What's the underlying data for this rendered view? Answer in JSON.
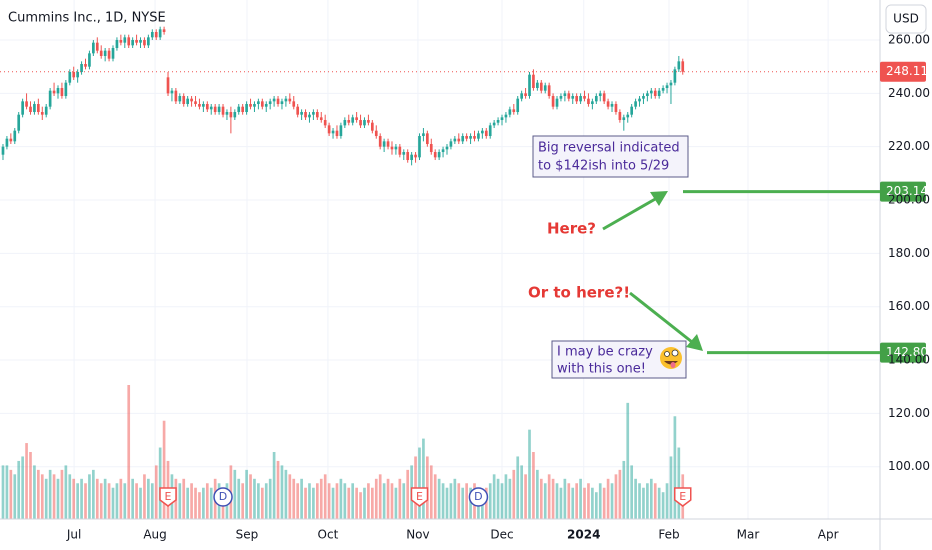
{
  "chart_data": {
    "type": "candlestick",
    "title": "Cummins Inc., 1D, NYSE",
    "currency": "USD",
    "up_color": "#26a69a",
    "down_color": "#ef5350",
    "ylim": [
      80.4,
      275
    ],
    "yticks": [
      {
        "value": 100,
        "label": "100.00"
      },
      {
        "value": 120,
        "label": "120.00"
      },
      {
        "value": 140,
        "label": "140.00"
      },
      {
        "value": 160,
        "label": "160.00"
      },
      {
        "value": 180,
        "label": "180.00"
      },
      {
        "value": 200,
        "label": "200.00"
      },
      {
        "value": 220,
        "label": "220.00"
      },
      {
        "value": 240,
        "label": "240.00"
      },
      {
        "value": 260,
        "label": "260.00"
      }
    ],
    "xlim": [
      -0.76,
      223.2
    ],
    "xticks": [
      {
        "value": 18.1,
        "label": "Jul"
      },
      {
        "value": 38.7,
        "label": "Aug"
      },
      {
        "value": 62.1,
        "label": "Sep"
      },
      {
        "value": 82.7,
        "label": "Oct"
      },
      {
        "value": 105.6,
        "label": "Nov"
      },
      {
        "value": 127,
        "label": "Dec"
      },
      {
        "value": 147.8,
        "label": "2024"
      },
      {
        "value": 169.5,
        "label": "Feb"
      },
      {
        "value": 189.6,
        "label": "Mar"
      },
      {
        "value": 210,
        "label": "Apr"
      }
    ],
    "grid": true,
    "ohlc": [
      [
        217,
        221,
        215,
        220
      ],
      [
        220,
        224,
        219,
        223
      ],
      [
        223,
        225,
        221,
        222
      ],
      [
        222,
        227,
        221,
        226
      ],
      [
        226,
        233,
        225,
        232
      ],
      [
        232,
        238,
        231,
        237
      ],
      [
        237,
        240,
        234,
        235
      ],
      [
        235,
        237,
        232,
        233
      ],
      [
        233,
        237,
        232,
        236
      ],
      [
        236,
        238,
        232,
        233
      ],
      [
        233,
        235,
        230,
        232
      ],
      [
        232,
        236,
        231,
        235
      ],
      [
        235,
        242,
        234,
        241
      ],
      [
        241,
        244,
        239,
        240
      ],
      [
        240,
        243,
        238,
        242
      ],
      [
        242,
        244,
        238,
        239
      ],
      [
        239,
        245,
        238,
        244
      ],
      [
        244,
        249,
        243,
        248
      ],
      [
        248,
        250,
        245,
        246
      ],
      [
        246,
        249,
        244,
        248
      ],
      [
        248,
        252,
        247,
        251
      ],
      [
        251,
        253,
        249,
        250
      ],
      [
        250,
        256,
        249,
        255
      ],
      [
        255,
        260,
        254,
        259
      ],
      [
        259,
        261,
        255,
        256
      ],
      [
        256,
        258,
        253,
        254
      ],
      [
        254,
        257,
        252,
        256
      ],
      [
        256,
        257,
        252,
        253
      ],
      [
        253,
        258,
        252,
        257
      ],
      [
        257,
        261,
        256,
        260
      ],
      [
        260,
        262,
        258,
        259
      ],
      [
        259,
        262,
        257,
        261
      ],
      [
        261,
        262,
        257,
        258
      ],
      [
        258,
        261,
        257,
        260
      ],
      [
        260,
        262,
        258,
        259
      ],
      [
        259,
        261,
        257,
        260
      ],
      [
        260,
        261,
        257,
        258
      ],
      [
        258,
        262,
        257,
        261
      ],
      [
        261,
        264,
        260,
        263
      ],
      [
        263,
        264,
        260,
        261
      ],
      [
        261,
        265,
        260,
        264
      ],
      [
        264,
        265,
        262,
        263
      ],
      [
        246,
        248,
        239,
        240
      ],
      [
        240,
        242,
        237,
        241
      ],
      [
        241,
        242,
        236,
        237
      ],
      [
        237,
        240,
        236,
        239
      ],
      [
        239,
        240,
        235,
        236
      ],
      [
        236,
        239,
        235,
        238
      ],
      [
        238,
        239,
        235,
        237
      ],
      [
        237,
        239,
        235,
        236
      ],
      [
        236,
        238,
        234,
        235
      ],
      [
        235,
        237,
        233,
        236
      ],
      [
        236,
        237,
        233,
        234
      ],
      [
        234,
        236,
        232,
        235
      ],
      [
        235,
        236,
        232,
        233
      ],
      [
        233,
        236,
        232,
        235
      ],
      [
        235,
        236,
        231,
        232
      ],
      [
        232,
        234,
        230,
        233
      ],
      [
        233,
        235,
        225,
        231
      ],
      [
        231,
        234,
        230,
        233
      ],
      [
        233,
        236,
        232,
        235
      ],
      [
        235,
        236,
        232,
        233
      ],
      [
        233,
        237,
        232,
        236
      ],
      [
        236,
        238,
        234,
        235
      ],
      [
        235,
        237,
        233,
        236
      ],
      [
        236,
        238,
        234,
        237
      ],
      [
        237,
        238,
        234,
        235
      ],
      [
        235,
        237,
        233,
        236
      ],
      [
        236,
        238,
        234,
        237
      ],
      [
        237,
        239,
        235,
        238
      ],
      [
        238,
        239,
        235,
        236
      ],
      [
        236,
        238,
        234,
        237
      ],
      [
        237,
        239,
        235,
        238
      ],
      [
        238,
        240,
        236,
        237
      ],
      [
        237,
        239,
        234,
        235
      ],
      [
        235,
        236,
        231,
        232
      ],
      [
        232,
        234,
        230,
        233
      ],
      [
        233,
        234,
        230,
        231
      ],
      [
        231,
        233,
        229,
        232
      ],
      [
        232,
        234,
        230,
        233
      ],
      [
        233,
        234,
        230,
        231
      ],
      [
        231,
        233,
        229,
        230
      ],
      [
        230,
        232,
        227,
        228
      ],
      [
        228,
        229,
        224,
        225
      ],
      [
        225,
        227,
        223,
        226
      ],
      [
        226,
        228,
        223,
        224
      ],
      [
        224,
        229,
        223,
        228
      ],
      [
        228,
        231,
        227,
        230
      ],
      [
        230,
        232,
        228,
        229
      ],
      [
        229,
        232,
        228,
        231
      ],
      [
        231,
        233,
        229,
        230
      ],
      [
        230,
        232,
        227,
        228
      ],
      [
        228,
        231,
        227,
        230
      ],
      [
        230,
        232,
        228,
        229
      ],
      [
        229,
        230,
        225,
        226
      ],
      [
        226,
        228,
        223,
        224
      ],
      [
        224,
        225,
        219,
        220
      ],
      [
        220,
        223,
        218,
        222
      ],
      [
        222,
        223,
        219,
        220
      ],
      [
        220,
        222,
        217,
        219
      ],
      [
        219,
        221,
        217,
        220
      ],
      [
        220,
        221,
        216,
        217
      ],
      [
        217,
        219,
        215,
        218
      ],
      [
        218,
        219,
        214,
        215
      ],
      [
        215,
        218,
        213,
        217
      ],
      [
        217,
        218,
        214,
        216
      ],
      [
        216,
        225,
        215,
        224
      ],
      [
        224,
        227,
        222,
        225
      ],
      [
        225,
        226,
        220,
        221
      ],
      [
        221,
        223,
        217,
        218
      ],
      [
        218,
        219,
        215,
        216
      ],
      [
        216,
        219,
        215,
        218
      ],
      [
        218,
        220,
        216,
        219
      ],
      [
        219,
        221,
        217,
        220
      ],
      [
        220,
        223,
        219,
        222
      ],
      [
        222,
        224,
        221,
        223
      ],
      [
        223,
        225,
        221,
        222
      ],
      [
        222,
        225,
        221,
        224
      ],
      [
        224,
        225,
        222,
        223
      ],
      [
        223,
        225,
        221,
        224
      ],
      [
        224,
        226,
        222,
        223
      ],
      [
        223,
        226,
        222,
        225
      ],
      [
        225,
        227,
        223,
        226
      ],
      [
        226,
        227,
        223,
        224
      ],
      [
        224,
        229,
        223,
        228
      ],
      [
        228,
        230,
        227,
        229
      ],
      [
        229,
        231,
        228,
        230
      ],
      [
        230,
        232,
        228,
        231
      ],
      [
        231,
        233,
        229,
        232
      ],
      [
        232,
        235,
        231,
        234
      ],
      [
        234,
        236,
        232,
        233
      ],
      [
        233,
        239,
        232,
        238
      ],
      [
        238,
        241,
        237,
        240
      ],
      [
        240,
        242,
        238,
        239
      ],
      [
        239,
        248,
        238,
        247
      ],
      [
        247,
        249,
        241,
        242
      ],
      [
        242,
        245,
        241,
        244
      ],
      [
        244,
        245,
        240,
        241
      ],
      [
        241,
        244,
        240,
        243
      ],
      [
        243,
        244,
        238,
        239
      ],
      [
        239,
        240,
        234,
        235
      ],
      [
        235,
        239,
        234,
        238
      ],
      [
        238,
        240,
        237,
        239
      ],
      [
        239,
        241,
        237,
        240
      ],
      [
        240,
        241,
        237,
        238
      ],
      [
        238,
        240,
        236,
        239
      ],
      [
        239,
        240,
        236,
        237
      ],
      [
        237,
        240,
        236,
        239
      ],
      [
        239,
        241,
        237,
        238
      ],
      [
        238,
        240,
        235,
        236
      ],
      [
        236,
        238,
        234,
        237
      ],
      [
        237,
        240,
        236,
        239
      ],
      [
        239,
        241,
        237,
        240
      ],
      [
        240,
        241,
        236,
        237
      ],
      [
        237,
        238,
        234,
        235
      ],
      [
        235,
        237,
        233,
        236
      ],
      [
        236,
        237,
        232,
        233
      ],
      [
        233,
        234,
        229,
        230
      ],
      [
        230,
        232,
        226,
        231
      ],
      [
        231,
        233,
        229,
        232
      ],
      [
        232,
        236,
        231,
        235
      ],
      [
        235,
        238,
        234,
        237
      ],
      [
        237,
        239,
        235,
        238
      ],
      [
        238,
        240,
        236,
        239
      ],
      [
        239,
        241,
        237,
        240
      ],
      [
        240,
        242,
        238,
        241
      ],
      [
        241,
        242,
        238,
        239
      ],
      [
        239,
        242,
        238,
        241
      ],
      [
        241,
        243,
        240,
        242
      ],
      [
        242,
        244,
        240,
        243
      ],
      [
        243,
        245,
        236,
        244
      ],
      [
        244,
        250,
        243,
        249
      ],
      [
        249,
        254,
        248,
        252
      ],
      [
        252,
        253,
        247,
        248.11
      ]
    ],
    "volumes": [
      1.2,
      1.2,
      1.1,
      1.0,
      1.3,
      1.4,
      1.7,
      1.5,
      1.2,
      1.1,
      1.0,
      0.9,
      1.1,
      1.0,
      0.9,
      1.1,
      1.2,
      1.0,
      0.9,
      0.8,
      0.9,
      0.8,
      1.0,
      1.1,
      0.9,
      0.8,
      0.9,
      0.8,
      0.7,
      0.8,
      0.9,
      0.8,
      3.0,
      0.9,
      0.8,
      0.7,
      1.0,
      0.9,
      0.8,
      1.2,
      1.6,
      2.2,
      1.3,
      1.0,
      0.9,
      0.8,
      0.9,
      0.7,
      0.8,
      0.7,
      0.6,
      0.7,
      0.8,
      0.7,
      0.9,
      0.8,
      0.7,
      0.8,
      1.2,
      1.1,
      0.9,
      0.8,
      1.1,
      1.0,
      0.9,
      0.8,
      0.7,
      0.8,
      0.9,
      1.5,
      1.3,
      1.2,
      1.1,
      1.0,
      0.9,
      0.8,
      0.9,
      0.7,
      0.8,
      0.7,
      0.8,
      0.9,
      1.0,
      0.8,
      0.7,
      0.8,
      0.9,
      0.8,
      0.7,
      0.8,
      0.7,
      0.6,
      0.7,
      0.8,
      0.7,
      0.9,
      1.0,
      0.8,
      0.9,
      0.8,
      0.7,
      0.9,
      0.8,
      1.1,
      1.2,
      1.4,
      1.6,
      1.8,
      1.4,
      1.2,
      1.0,
      0.9,
      0.8,
      0.7,
      0.8,
      0.9,
      0.8,
      0.7,
      0.8,
      0.7,
      0.8,
      0.7,
      0.6,
      0.7,
      0.8,
      1.0,
      0.9,
      0.8,
      1.0,
      0.9,
      1.1,
      1.4,
      1.2,
      1.0,
      2.0,
      1.5,
      1.1,
      0.9,
      0.8,
      1.0,
      0.9,
      0.8,
      0.7,
      0.9,
      0.8,
      0.7,
      0.8,
      0.9,
      0.7,
      0.8,
      0.7,
      0.6,
      0.8,
      0.7,
      0.9,
      0.8,
      1.0,
      1.1,
      1.3,
      2.6,
      1.2,
      0.9,
      0.8,
      0.7,
      0.8,
      0.9,
      0.8,
      0.7,
      0.6,
      0.8,
      1.4,
      2.3,
      1.6,
      1.0
    ],
    "last_price": 248.11,
    "levels": [
      203.14,
      {
        "value": 142.8,
        "label": "142.80"
      }
    ],
    "events": [
      {
        "label": "E",
        "index": 42
      },
      {
        "label": "D",
        "index": 56
      },
      {
        "label": "E",
        "index": 106
      },
      {
        "label": "D",
        "index": 121
      },
      {
        "label": "E",
        "index": 173
      }
    ],
    "annotations": [
      {
        "lines": [
          "Big reversal indicated",
          "to $142ish into 5/29"
        ]
      },
      {
        "text": "Here?"
      },
      {
        "text": "Or to here?!"
      },
      {
        "lines": [
          "I may be crazy",
          "with this one!"
        ]
      }
    ]
  }
}
